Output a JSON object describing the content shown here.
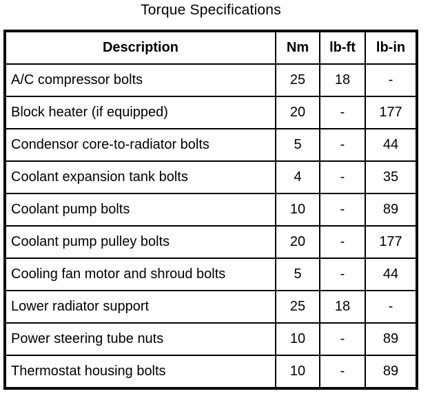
{
  "page": {
    "title": "Torque Specifications"
  },
  "table": {
    "headers": [
      "Description",
      "Nm",
      "lb-ft",
      "lb-in"
    ],
    "rows": [
      [
        "A/C compressor bolts",
        "25",
        "18",
        "-"
      ],
      [
        "Block heater (if equipped)",
        "20",
        "-",
        "177"
      ],
      [
        "Condensor core-to-radiator bolts",
        "5",
        "-",
        "44"
      ],
      [
        "Coolant expansion tank bolts",
        "4",
        "-",
        "35"
      ],
      [
        "Coolant pump bolts",
        "10",
        "-",
        "89"
      ],
      [
        "Coolant pump pulley bolts",
        "20",
        "-",
        "177"
      ],
      [
        "Cooling fan motor and shroud bolts",
        "5",
        "-",
        "44"
      ],
      [
        "Lower radiator support",
        "25",
        "18",
        "-"
      ],
      [
        "Power steering tube nuts",
        "10",
        "-",
        "89"
      ],
      [
        "Thermostat housing bolts",
        "10",
        "-",
        "89"
      ]
    ]
  }
}
